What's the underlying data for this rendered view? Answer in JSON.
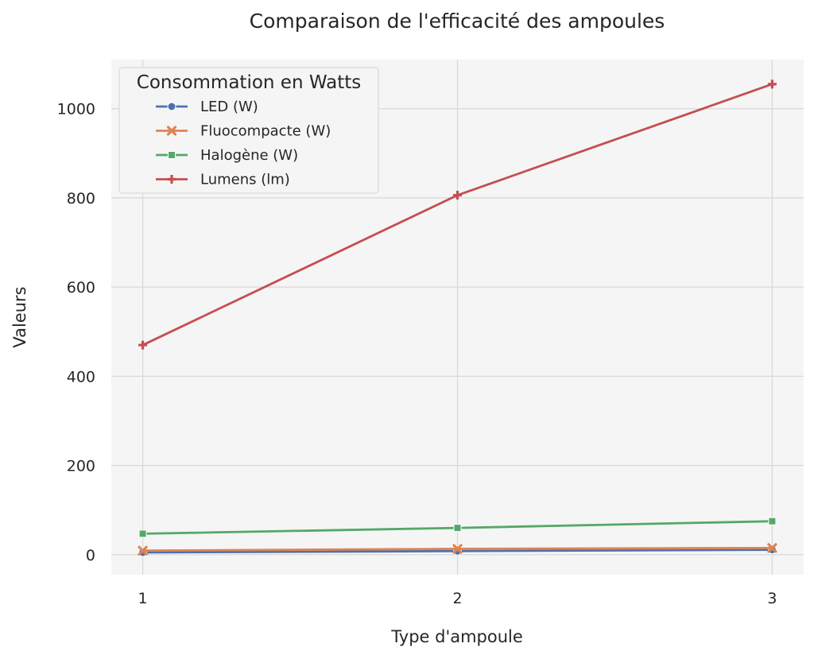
{
  "chart_data": {
    "type": "line",
    "title": "Comparaison de l'efficacité des ampoules",
    "xlabel": "Type d'ampoule",
    "ylabel": "Valeurs",
    "x": [
      1,
      2,
      3
    ],
    "x_tick_labels": [
      "1",
      "2",
      "3"
    ],
    "xlim": [
      0.9,
      3.1
    ],
    "ylim": [
      -45,
      1110
    ],
    "y_ticks": [
      0,
      200,
      400,
      600,
      800,
      1000
    ],
    "y_tick_labels": [
      "0",
      "200",
      "400",
      "600",
      "800",
      "1000"
    ],
    "grid": true,
    "legend": {
      "title": "Consommation en Watts",
      "placement": "top-left"
    },
    "series": [
      {
        "name": "LED (W)",
        "values": [
          5,
          8,
          11
        ],
        "color": "#4c72b0",
        "marker": "circle"
      },
      {
        "name": "Fluocompacte (W)",
        "values": [
          9,
          13,
          15
        ],
        "color": "#dd8452",
        "marker": "x"
      },
      {
        "name": "Halogène (W)",
        "values": [
          47,
          60,
          75
        ],
        "color": "#55a868",
        "marker": "square"
      },
      {
        "name": "Lumens (lm)",
        "values": [
          470,
          806,
          1055
        ],
        "color": "#c44e52",
        "marker": "plus"
      }
    ]
  },
  "colors": {
    "plot_background": "#f5f5f5",
    "grid": "#d9d9d9",
    "text": "#262626"
  }
}
